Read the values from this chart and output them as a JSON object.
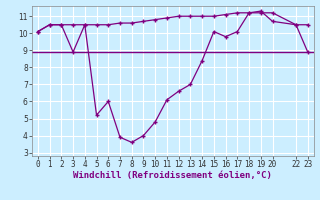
{
  "x": [
    0,
    1,
    2,
    3,
    4,
    5,
    6,
    7,
    8,
    9,
    10,
    11,
    12,
    13,
    14,
    15,
    16,
    17,
    18,
    19,
    20,
    22,
    23
  ],
  "windchill": [
    10.1,
    10.5,
    10.5,
    8.9,
    10.5,
    5.2,
    6.0,
    3.9,
    3.6,
    4.0,
    4.8,
    6.1,
    6.6,
    7.0,
    8.4,
    10.1,
    9.8,
    10.1,
    11.2,
    11.3,
    10.7,
    10.5,
    8.9
  ],
  "temp": [
    10.1,
    10.5,
    10.5,
    10.5,
    10.5,
    10.5,
    10.5,
    10.6,
    10.6,
    10.7,
    10.8,
    10.9,
    11.0,
    11.0,
    11.0,
    11.0,
    11.1,
    11.2,
    11.2,
    11.2,
    11.2,
    10.5,
    10.5
  ],
  "hline_y": 8.9,
  "line_color": "#800080",
  "bg_color": "#cceeff",
  "grid_color": "#aadddd",
  "xlabel": "Windchill (Refroidissement éolien,°C)",
  "ylim": [
    2.8,
    11.6
  ],
  "xlim": [
    -0.5,
    23.5
  ],
  "yticks": [
    3,
    4,
    5,
    6,
    7,
    8,
    9,
    10,
    11
  ],
  "xticks": [
    0,
    1,
    2,
    3,
    4,
    5,
    6,
    7,
    8,
    9,
    10,
    11,
    12,
    13,
    14,
    15,
    16,
    17,
    18,
    19,
    20,
    22,
    23
  ],
  "tick_fontsize": 5.5,
  "xlabel_fontsize": 6.5
}
